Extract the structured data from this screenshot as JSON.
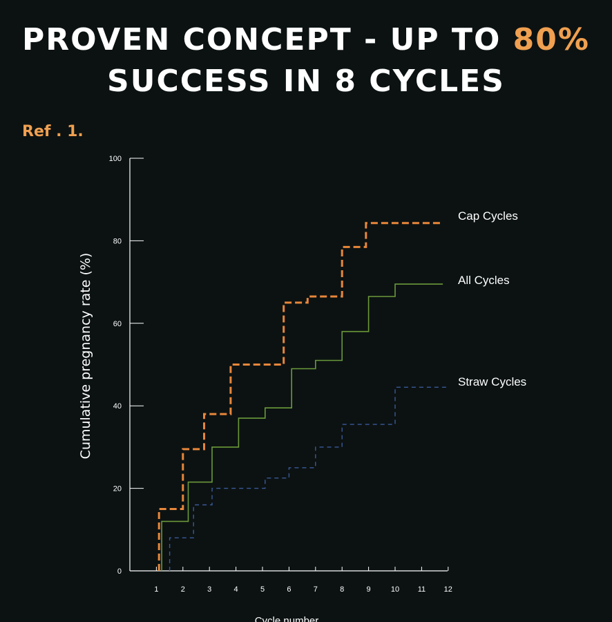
{
  "header": {
    "title_part1": "PROVEN CONCEPT - UP TO ",
    "title_highlight": "80%",
    "title_line2": "SUCCESS IN 8 CYCLES",
    "ref": "Ref . 1.",
    "highlight_color": "#f0a050"
  },
  "chart_data": {
    "type": "line",
    "step": true,
    "ylabel": "Cumulative pregnancy rate (%)",
    "xlabel": "Cycle number",
    "ylim": [
      0,
      100
    ],
    "xlim": [
      0,
      12
    ],
    "yticks": [
      0,
      20,
      40,
      60,
      80,
      100
    ],
    "xticks": [
      1,
      2,
      3,
      4,
      5,
      6,
      7,
      8,
      9,
      10,
      11,
      12
    ],
    "grid": false,
    "legend": "labels-at-line-ends",
    "series": [
      {
        "name": "Cap Cycles",
        "color": "#e8873a",
        "style": "dashed-thick",
        "x": [
          1.1,
          1.1,
          2,
          2,
          2.8,
          2.8,
          3.8,
          3.8,
          5.8,
          5.8,
          6.7,
          6.7,
          8,
          8,
          8.9,
          8.9,
          11.8
        ],
        "y": [
          0,
          15,
          15,
          29.5,
          29.5,
          38,
          38,
          50,
          50,
          65,
          65,
          66.5,
          66.5,
          78.5,
          78.5,
          84.3,
          84.3
        ]
      },
      {
        "name": "All Cycles",
        "color": "#6b9a3a",
        "style": "solid",
        "x": [
          1.2,
          1.2,
          2.2,
          2.2,
          3.1,
          3.1,
          4.1,
          4.1,
          5.1,
          5.1,
          6.1,
          6.1,
          7,
          7,
          8,
          8,
          9,
          9,
          10,
          10,
          11.8
        ],
        "y": [
          0,
          12,
          12,
          21.5,
          21.5,
          30,
          30,
          37,
          37,
          39.5,
          39.5,
          49,
          49,
          51,
          51,
          58,
          58,
          66.5,
          66.5,
          69.5,
          69.5
        ]
      },
      {
        "name": "Straw Cycles",
        "color": "#3a5a9a",
        "style": "dashed-thin",
        "x": [
          1.5,
          1.5,
          2.4,
          2.4,
          3.1,
          3.1,
          5.1,
          5.1,
          6,
          6,
          7,
          7,
          8,
          8,
          10,
          10,
          12
        ],
        "y": [
          0,
          8,
          8,
          16,
          16,
          20,
          20,
          22.5,
          22.5,
          25,
          25,
          30,
          30,
          35.5,
          35.5,
          44.5,
          44.5
        ]
      }
    ]
  }
}
